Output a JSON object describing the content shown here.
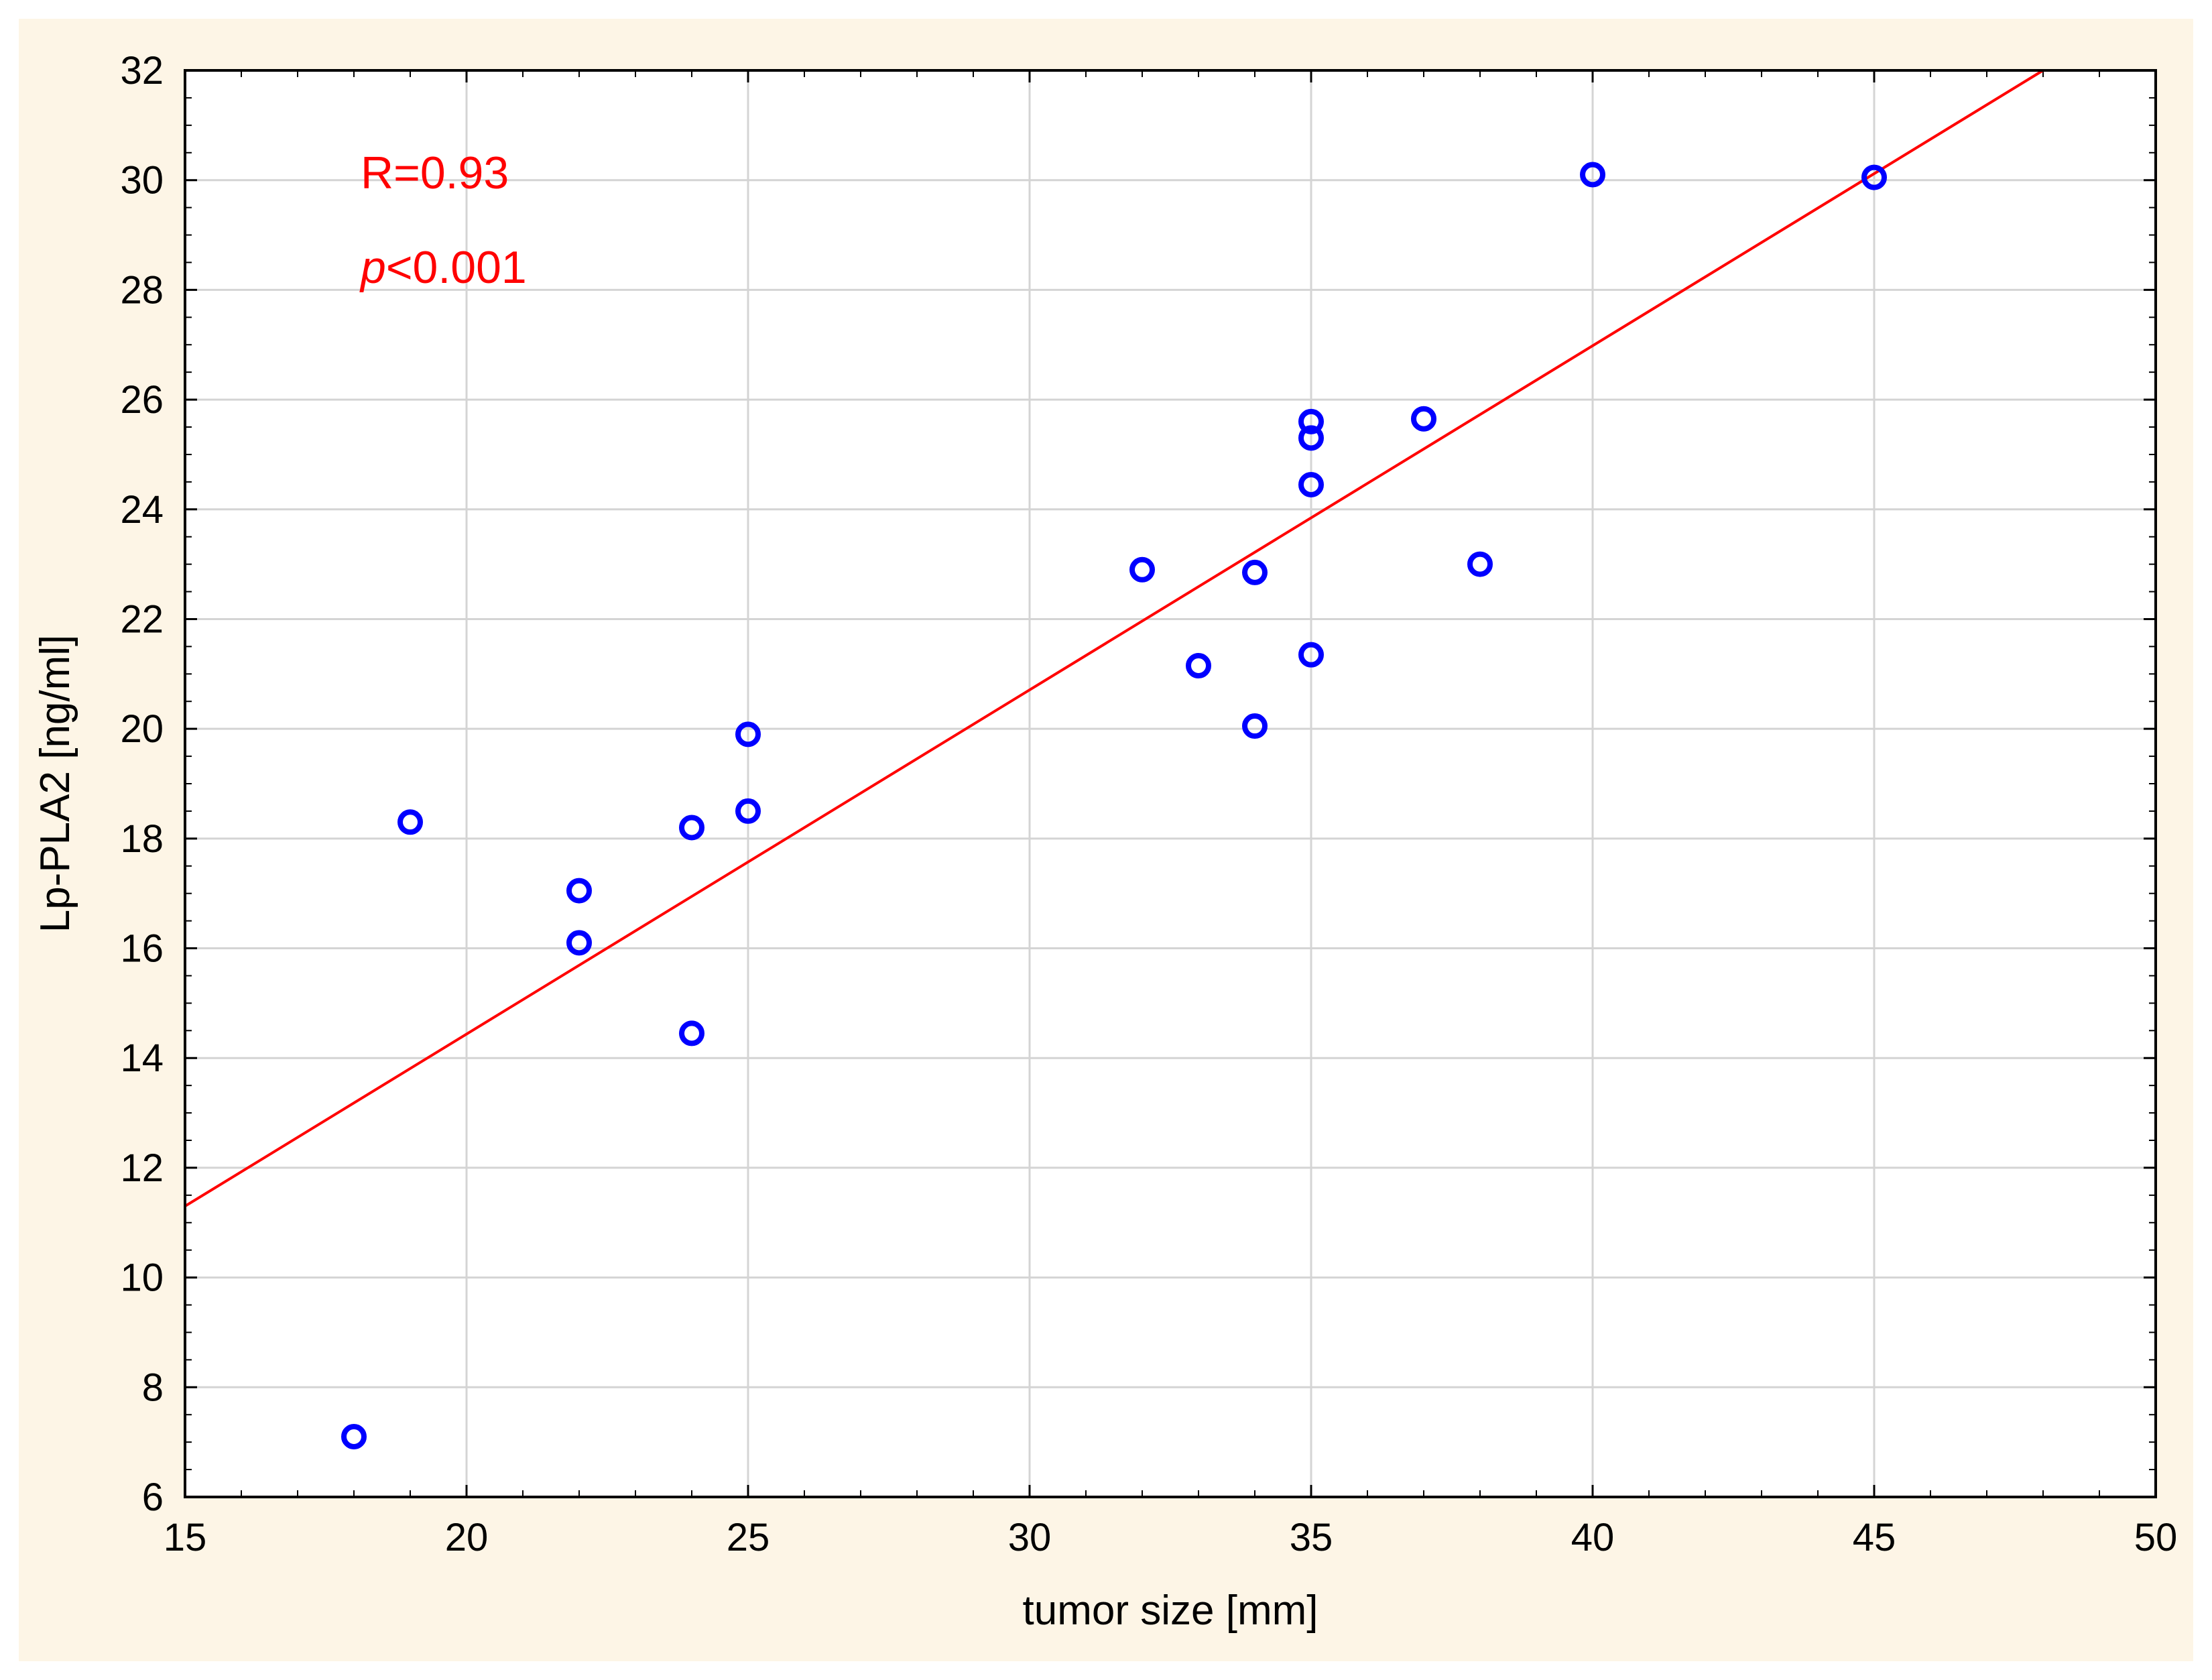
{
  "chart_data": {
    "type": "scatter",
    "xlabel": "tumor size [mm]",
    "ylabel": "Lp-PLA2 [ng/ml]",
    "xlim": [
      15,
      50
    ],
    "ylim": [
      6,
      32
    ],
    "x_ticks": [
      15,
      20,
      25,
      30,
      35,
      40,
      45,
      50
    ],
    "y_ticks": [
      6,
      8,
      10,
      12,
      14,
      16,
      18,
      20,
      22,
      24,
      26,
      28,
      30,
      32
    ],
    "grid": true,
    "points": [
      {
        "x": 18,
        "y": 7.1
      },
      {
        "x": 19,
        "y": 18.3
      },
      {
        "x": 22,
        "y": 17.05
      },
      {
        "x": 22,
        "y": 16.1
      },
      {
        "x": 24,
        "y": 18.2
      },
      {
        "x": 24,
        "y": 14.45
      },
      {
        "x": 25,
        "y": 19.9
      },
      {
        "x": 25,
        "y": 18.5
      },
      {
        "x": 32,
        "y": 22.9
      },
      {
        "x": 33,
        "y": 21.15
      },
      {
        "x": 34,
        "y": 22.85
      },
      {
        "x": 34,
        "y": 20.05
      },
      {
        "x": 35,
        "y": 25.6
      },
      {
        "x": 35,
        "y": 25.3
      },
      {
        "x": 35,
        "y": 24.45
      },
      {
        "x": 35,
        "y": 21.35
      },
      {
        "x": 37,
        "y": 25.65
      },
      {
        "x": 38,
        "y": 23.0
      },
      {
        "x": 40,
        "y": 30.1
      },
      {
        "x": 45,
        "y": 30.05
      }
    ],
    "fit_line": {
      "x1": 15,
      "y1": 11.3,
      "x2": 48,
      "y2": 32
    },
    "annotations": {
      "r_text": "R=0.93",
      "p_symbol": "p",
      "p_rest": "<0.001"
    },
    "colors": {
      "points": "#0000ff",
      "fit_line": "#ff0000",
      "annotation": "#ff0000",
      "grid": "#d4d4d4",
      "axis": "#000000"
    }
  }
}
